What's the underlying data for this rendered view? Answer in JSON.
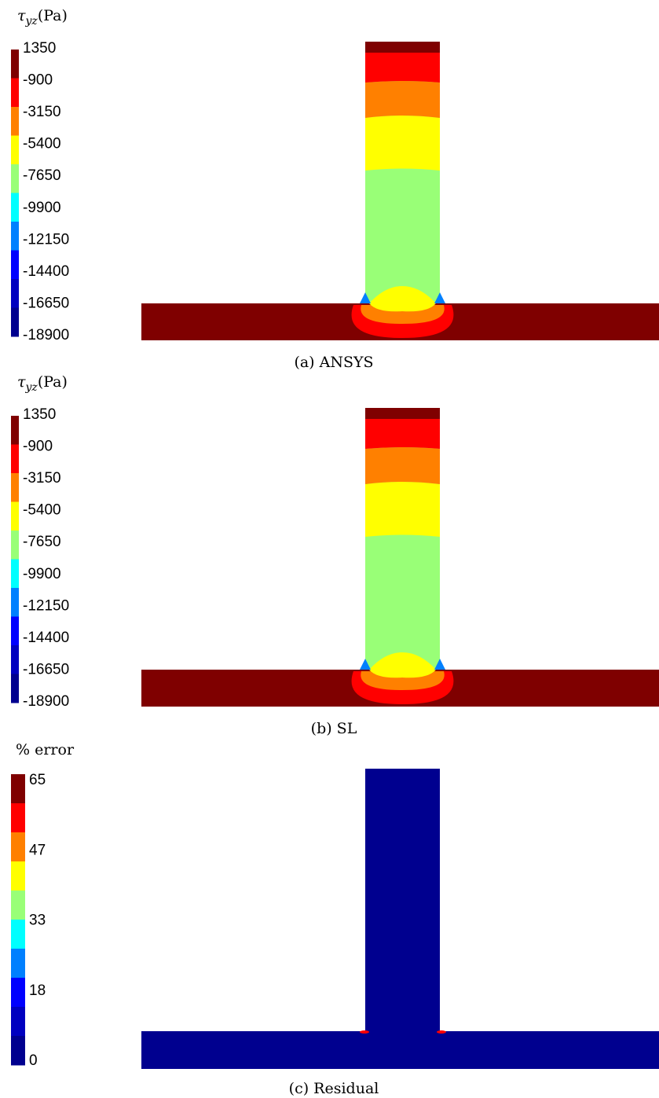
{
  "panels": [
    {
      "colorbar": {
        "symbol": "τ",
        "subscript": "yz",
        "unit": "(Pa)",
        "labels": [
          "1350",
          "-900",
          "-3150",
          "-5400",
          "-7650",
          "-9900",
          "-12150",
          "-14400",
          "-16650",
          "-18900"
        ]
      },
      "caption": "(a) ANSYS"
    },
    {
      "colorbar": {
        "symbol": "τ",
        "subscript": "yz",
        "unit": "(Pa)",
        "labels": [
          "1350",
          "-900",
          "-3150",
          "-5400",
          "-7650",
          "-9900",
          "-12150",
          "-14400",
          "-16650",
          "-18900"
        ]
      },
      "caption": "(b) SL"
    },
    {
      "colorbar": {
        "title": "% error",
        "labels": [
          "65",
          "47",
          "33",
          "18",
          "0"
        ]
      },
      "caption": "(c) Residual"
    }
  ],
  "colors": [
    "#7f0000",
    "#ff0000",
    "#ff8000",
    "#ffff00",
    "#99ff77",
    "#00ffff",
    "#0080ff",
    "#0000ff",
    "#0000c0",
    "#00008f"
  ]
}
